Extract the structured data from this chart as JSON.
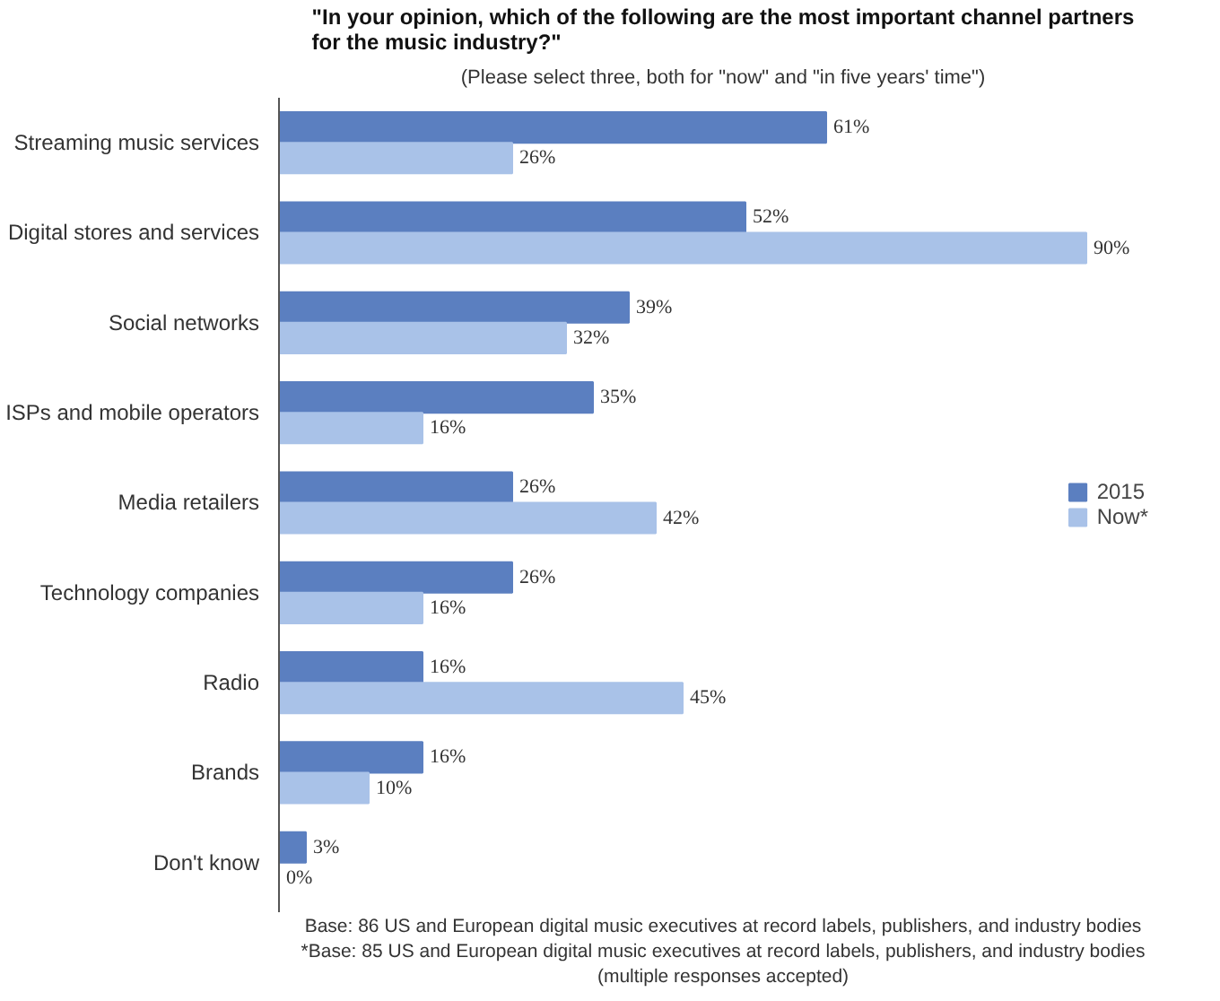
{
  "chart_data": {
    "type": "bar",
    "orientation": "horizontal",
    "title": "\"In your opinion, which of the following are the most important channel partners for the music industry?\"",
    "subtitle": "(Please select three, both for \"now\" and \"in five years' time\")",
    "categories": [
      "Streaming music services",
      "Digital stores and services",
      "Social networks",
      "ISPs and mobile operators",
      "Media retailers",
      "Technology companies",
      "Radio",
      "Brands",
      "Don't know"
    ],
    "series": [
      {
        "name": "2015",
        "color": "#5b7fc0",
        "values": [
          61,
          52,
          39,
          35,
          26,
          26,
          16,
          16,
          3
        ],
        "value_labels": [
          "61%",
          "52%",
          "39%",
          "35%",
          "26%",
          "26%",
          "16%",
          "16%",
          "3%"
        ]
      },
      {
        "name": "Now*",
        "color": "#a9c2e8",
        "values": [
          26,
          90,
          32,
          16,
          42,
          16,
          45,
          10,
          0
        ],
        "value_labels": [
          "26%",
          "90%",
          "32%",
          "16%",
          "42%",
          "16%",
          "45%",
          "10%",
          "0%"
        ]
      }
    ],
    "legend": "right",
    "grid": false,
    "tick_labels": "y",
    "annotations": [
      "Base: 86 US and European digital music executives at record labels, publishers, and industry bodies",
      "*Base: 85 US and European digital music executives at record labels, publishers, and industry bodies (multiple responses accepted)"
    ]
  }
}
